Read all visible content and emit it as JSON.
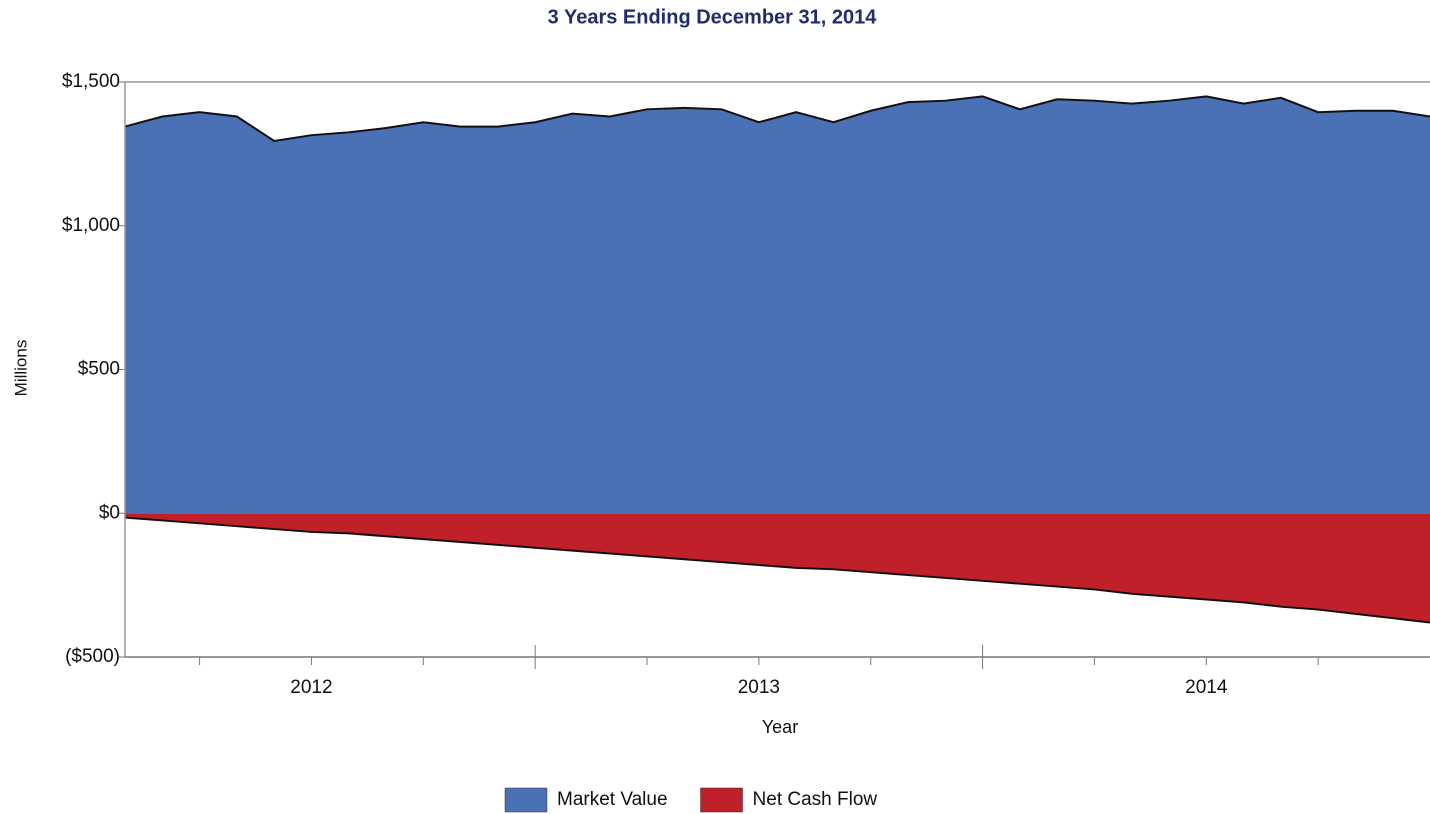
{
  "chart_data": {
    "type": "area",
    "title": "3 Years Ending December 31, 2014",
    "y_label": "Millions",
    "x_label": "Year",
    "x": [
      2012.0833,
      2012.1667,
      2012.25,
      2012.3333,
      2012.4167,
      2012.5,
      2012.5833,
      2012.6667,
      2012.75,
      2012.8333,
      2012.9167,
      2013,
      2013.0833,
      2013.1667,
      2013.25,
      2013.3333,
      2013.4167,
      2013.5,
      2013.5833,
      2013.6667,
      2013.75,
      2013.8333,
      2013.9167,
      2014,
      2014.0833,
      2014.1667,
      2014.25,
      2014.3333,
      2014.4167,
      2014.5,
      2014.5833,
      2014.6667,
      2014.75,
      2014.8333,
      2014.9167,
      2015
    ],
    "series": [
      {
        "name": "Market Value",
        "color": "#4a70b6",
        "values": [
          1345,
          1380,
          1395,
          1380,
          1295,
          1315,
          1325,
          1340,
          1360,
          1345,
          1345,
          1360,
          1390,
          1380,
          1405,
          1410,
          1405,
          1360,
          1395,
          1360,
          1400,
          1430,
          1435,
          1450,
          1405,
          1440,
          1435,
          1425,
          1435,
          1450,
          1425,
          1445,
          1395,
          1400,
          1400,
          1380
        ]
      },
      {
        "name": "Net Cash Flow",
        "color": "#c0202a",
        "values": [
          -15,
          -25,
          -35,
          -45,
          -55,
          -65,
          -70,
          -80,
          -90,
          -100,
          -110,
          -120,
          -130,
          -140,
          -150,
          -160,
          -170,
          -180,
          -190,
          -195,
          -205,
          -215,
          -225,
          -235,
          -245,
          -255,
          -265,
          -280,
          -290,
          -300,
          -310,
          -325,
          -335,
          -350,
          -365,
          -380
        ]
      }
    ],
    "xlim": [
      2012.0833,
      2015
    ],
    "xticks": [
      {
        "value": 2012.5,
        "label": "2012"
      },
      {
        "value": 2013.5,
        "label": "2013"
      },
      {
        "value": 2014.5,
        "label": "2014"
      }
    ],
    "ylim": [
      -500,
      1500
    ],
    "yticks": [
      {
        "value": -500,
        "label": "($500)"
      },
      {
        "value": 0,
        "label": "$0"
      },
      {
        "value": 500,
        "label": "$500"
      },
      {
        "value": 1000,
        "label": "$1,000"
      },
      {
        "value": 1500,
        "label": "$1,500"
      }
    ],
    "grid": false,
    "legend": "bottom"
  }
}
